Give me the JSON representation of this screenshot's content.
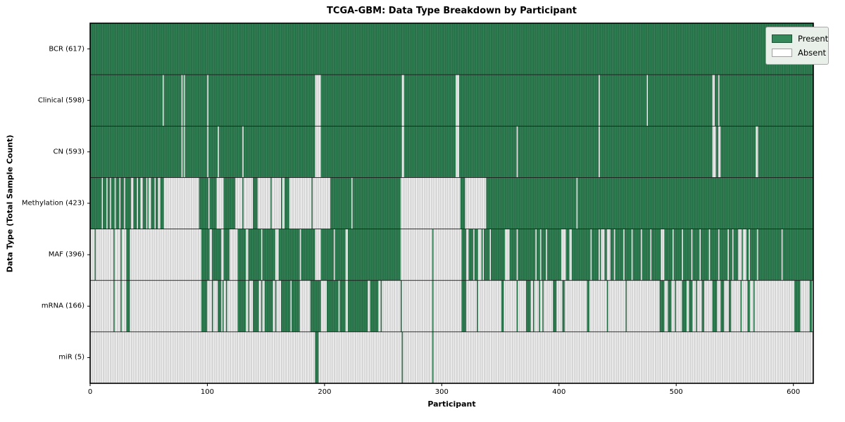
{
  "figure": {
    "title": "TCGA-GBM: Data Type Breakdown by Participant",
    "xlabel": "Participant",
    "ylabel": "Data Type (Total Sample Count)"
  },
  "legend": {
    "items": [
      {
        "label": "Present",
        "color": "#35885a",
        "edge": "#1c5435"
      },
      {
        "label": "Absent",
        "color": "#ffffff",
        "edge": "#a0a0a0"
      }
    ]
  },
  "chart_data": {
    "type": "heatmap",
    "title": "TCGA-GBM: Data Type Breakdown by Participant",
    "xlabel": "Participant",
    "ylabel": "Data Type (Total Sample Count)",
    "legend_entries": [
      "Present",
      "Absent"
    ],
    "legend_position": "upper right",
    "grid": false,
    "n_participants": 617,
    "xlim": [
      0,
      617
    ],
    "xticks": [
      0,
      100,
      200,
      300,
      400,
      500,
      600
    ],
    "colors": {
      "present": "#35885a",
      "present_edge": "#1c5435",
      "absent": "#ffffff",
      "absent_edge": "#a0a0a0",
      "row_divider": "#1a1a1a",
      "spine": "#000000"
    },
    "value_encoding": "present_runs are inclusive [start,end] participant index ranges where the data type is Present; all other indices are Absent",
    "rows": [
      {
        "label": "BCR (617)",
        "data_type": "BCR",
        "total": 617,
        "present_runs": [
          [
            0,
            616
          ]
        ]
      },
      {
        "label": "Clinical (598)",
        "data_type": "Clinical",
        "total": 598,
        "present_runs": [
          [
            0,
            61
          ],
          [
            63,
            77
          ],
          [
            79,
            79
          ],
          [
            81,
            99
          ],
          [
            101,
            191
          ],
          [
            197,
            265
          ],
          [
            268,
            311
          ],
          [
            315,
            433
          ],
          [
            435,
            474
          ],
          [
            476,
            530
          ],
          [
            533,
            535
          ],
          [
            537,
            616
          ]
        ]
      },
      {
        "label": "CN (593)",
        "data_type": "CN",
        "total": 593,
        "present_runs": [
          [
            0,
            77
          ],
          [
            79,
            79
          ],
          [
            81,
            99
          ],
          [
            101,
            108
          ],
          [
            110,
            129
          ],
          [
            131,
            191
          ],
          [
            197,
            265
          ],
          [
            268,
            311
          ],
          [
            315,
            363
          ],
          [
            365,
            433
          ],
          [
            435,
            530
          ],
          [
            534,
            535
          ],
          [
            538,
            567
          ],
          [
            570,
            616
          ]
        ]
      },
      {
        "label": "Methylation (423)",
        "data_type": "Methylation",
        "total": 423,
        "present_runs": [
          [
            0,
            9
          ],
          [
            11,
            13
          ],
          [
            15,
            16
          ],
          [
            18,
            20
          ],
          [
            22,
            24
          ],
          [
            26,
            28
          ],
          [
            30,
            34
          ],
          [
            37,
            39
          ],
          [
            41,
            42
          ],
          [
            45,
            47
          ],
          [
            49,
            49
          ],
          [
            52,
            54
          ],
          [
            56,
            57
          ],
          [
            60,
            62
          ],
          [
            93,
            100
          ],
          [
            102,
            107
          ],
          [
            114,
            123
          ],
          [
            130,
            130
          ],
          [
            139,
            142
          ],
          [
            154,
            154
          ],
          [
            163,
            163
          ],
          [
            166,
            169
          ],
          [
            189,
            189
          ],
          [
            205,
            222
          ],
          [
            224,
            264
          ],
          [
            316,
            319
          ],
          [
            338,
            414
          ],
          [
            416,
            616
          ]
        ]
      },
      {
        "label": "MAF (396)",
        "data_type": "MAF",
        "total": 396,
        "present_runs": [
          [
            4,
            4
          ],
          [
            20,
            20
          ],
          [
            26,
            26
          ],
          [
            31,
            33
          ],
          [
            95,
            101
          ],
          [
            104,
            111
          ],
          [
            114,
            118
          ],
          [
            126,
            132
          ],
          [
            135,
            145
          ],
          [
            147,
            157
          ],
          [
            161,
            178
          ],
          [
            180,
            191
          ],
          [
            197,
            207
          ],
          [
            209,
            217
          ],
          [
            220,
            264
          ],
          [
            292,
            292
          ],
          [
            317,
            320
          ],
          [
            323,
            326
          ],
          [
            328,
            330
          ],
          [
            334,
            334
          ],
          [
            336,
            340
          ],
          [
            342,
            353
          ],
          [
            358,
            363
          ],
          [
            365,
            379
          ],
          [
            381,
            383
          ],
          [
            385,
            388
          ],
          [
            390,
            401
          ],
          [
            406,
            408
          ],
          [
            411,
            426
          ],
          [
            428,
            433
          ],
          [
            435,
            435
          ],
          [
            439,
            440
          ],
          [
            444,
            446
          ],
          [
            448,
            454
          ],
          [
            456,
            461
          ],
          [
            463,
            469
          ],
          [
            471,
            477
          ],
          [
            479,
            486
          ],
          [
            490,
            496
          ],
          [
            498,
            504
          ],
          [
            506,
            512
          ],
          [
            514,
            519
          ],
          [
            521,
            527
          ],
          [
            529,
            535
          ],
          [
            537,
            543
          ],
          [
            545,
            547
          ],
          [
            549,
            552
          ],
          [
            556,
            556
          ],
          [
            560,
            561
          ],
          [
            563,
            568
          ],
          [
            570,
            589
          ],
          [
            591,
            616
          ]
        ]
      },
      {
        "label": "mRNA (166)",
        "data_type": "mRNA",
        "total": 166,
        "present_runs": [
          [
            20,
            20
          ],
          [
            26,
            26
          ],
          [
            31,
            33
          ],
          [
            95,
            99
          ],
          [
            104,
            104
          ],
          [
            109,
            111
          ],
          [
            113,
            113
          ],
          [
            116,
            116
          ],
          [
            126,
            132
          ],
          [
            135,
            135
          ],
          [
            139,
            143
          ],
          [
            146,
            146
          ],
          [
            149,
            155
          ],
          [
            158,
            158
          ],
          [
            163,
            170
          ],
          [
            172,
            178
          ],
          [
            188,
            196
          ],
          [
            202,
            211
          ],
          [
            213,
            217
          ],
          [
            220,
            236
          ],
          [
            239,
            245
          ],
          [
            248,
            248
          ],
          [
            265,
            265
          ],
          [
            292,
            292
          ],
          [
            317,
            320
          ],
          [
            330,
            330
          ],
          [
            351,
            352
          ],
          [
            364,
            364
          ],
          [
            372,
            375
          ],
          [
            378,
            378
          ],
          [
            383,
            383
          ],
          [
            386,
            386
          ],
          [
            395,
            397
          ],
          [
            403,
            404
          ],
          [
            424,
            425
          ],
          [
            441,
            441
          ],
          [
            457,
            457
          ],
          [
            486,
            489
          ],
          [
            493,
            495
          ],
          [
            499,
            499
          ],
          [
            505,
            508
          ],
          [
            511,
            513
          ],
          [
            517,
            517
          ],
          [
            522,
            523
          ],
          [
            531,
            534
          ],
          [
            538,
            540
          ],
          [
            545,
            546
          ],
          [
            555,
            555
          ],
          [
            561,
            562
          ],
          [
            566,
            566
          ],
          [
            601,
            605
          ],
          [
            614,
            615
          ]
        ]
      },
      {
        "label": "miR (5)",
        "data_type": "miR",
        "total": 5,
        "present_runs": [
          [
            192,
            194
          ],
          [
            266,
            266
          ],
          [
            292,
            292
          ]
        ]
      }
    ]
  }
}
